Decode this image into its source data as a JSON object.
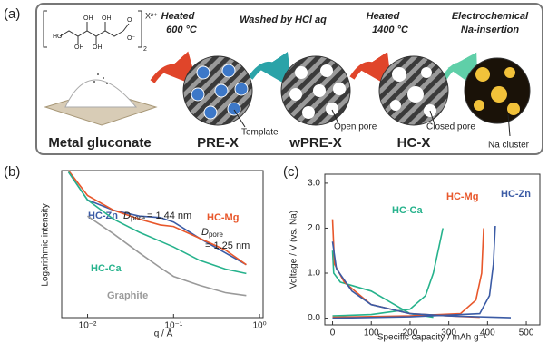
{
  "panel_labels": [
    "(a)",
    "(b)",
    "(c)"
  ],
  "schematic": {
    "structure_labels": [
      "HO",
      "OH",
      "OH",
      "OH",
      "OH",
      "O",
      "O⁻"
    ],
    "counter_ion": "X²⁺",
    "counter_count": "2",
    "steps": [
      {
        "lines": [
          "Heated",
          "600 °C"
        ]
      },
      {
        "lines": [
          "Washed by HCl aq"
        ]
      },
      {
        "lines": [
          "Heated",
          "1400 °C"
        ]
      },
      {
        "lines": [
          "Electrochemical",
          "Na-insertion"
        ]
      }
    ],
    "stages": [
      "Metal gluconate",
      "PRE-X",
      "wPRE-X",
      "HC-X"
    ],
    "callouts": [
      "Template",
      "Open pore",
      "Closed pore",
      "Na cluster"
    ]
  },
  "chart_data": [
    {
      "type": "line",
      "xscale": "log",
      "xlabel": "q / Å",
      "ylabel": "Logarithmic intensity",
      "xlim": [
        0.005,
        1.1
      ],
      "ylim": [
        0,
        10
      ],
      "xticks": [
        {
          "value": 0.01,
          "label": "10⁻²"
        },
        {
          "value": 0.1,
          "label": "10⁻¹"
        },
        {
          "value": 1,
          "label": "10⁰"
        }
      ],
      "x": [
        0.006,
        0.01,
        0.02,
        0.04,
        0.07,
        0.1,
        0.2,
        0.4,
        0.7
      ],
      "series": [
        {
          "name": "HC-Zn",
          "color": "#3b5ba5",
          "values": [
            9.9,
            8.0,
            7.3,
            6.9,
            6.8,
            6.5,
            5.4,
            4.4,
            3.6
          ]
        },
        {
          "name": "HC-Mg",
          "color": "#e8572b",
          "values": [
            10.0,
            8.3,
            7.3,
            6.7,
            6.3,
            6.2,
            5.4,
            4.6,
            3.6
          ]
        },
        {
          "name": "HC-Ca",
          "color": "#26b28c",
          "values": [
            9.9,
            8.0,
            6.7,
            5.8,
            5.2,
            4.8,
            3.9,
            3.3,
            3.0
          ]
        },
        {
          "name": "Graphite",
          "color": "#9a9a9a",
          "values": [
            null,
            6.9,
            5.7,
            4.4,
            3.4,
            2.8,
            2.2,
            1.7,
            1.5
          ]
        }
      ],
      "annotations": [
        [
          "D",
          "pore",
          "= 1.44 nm"
        ],
        [
          "D",
          "pore"
        ],
        [
          "= 1.25 nm"
        ]
      ]
    },
    {
      "type": "line",
      "xlabel": "Specific capacity / mAh g⁻¹",
      "ylabel": "Voltage / V (vs. Na)",
      "xlim": [
        -20,
        535
      ],
      "ylim": [
        -0.15,
        3.2
      ],
      "xticks": [
        0,
        100,
        200,
        300,
        400,
        500
      ],
      "yticks": [
        {
          "value": 0,
          "label": "0.0"
        },
        {
          "value": 1,
          "label": "1.0"
        },
        {
          "value": 2,
          "label": "2.0"
        },
        {
          "value": 3,
          "label": "3.0"
        }
      ],
      "series": [
        {
          "name": "HC-Ca",
          "color": "#26b28c",
          "x": [
            0,
            3,
            20,
            100,
            160,
            200,
            260,
            null,
            0,
            100,
            200,
            240,
            260,
            275,
            285
          ],
          "values": [
            1.5,
            1.0,
            0.8,
            0.6,
            0.3,
            0.1,
            0.02,
            null,
            0.05,
            0.08,
            0.2,
            0.5,
            1.0,
            1.6,
            2.0
          ]
        },
        {
          "name": "HC-Mg",
          "color": "#e8572b",
          "x": [
            0,
            5,
            30,
            100,
            200,
            300,
            380,
            null,
            0,
            200,
            330,
            370,
            385,
            390
          ],
          "values": [
            2.2,
            1.2,
            0.8,
            0.3,
            0.1,
            0.05,
            0.02,
            null,
            0.02,
            0.05,
            0.1,
            0.4,
            1.0,
            2.0
          ]
        },
        {
          "name": "HC-Zn",
          "color": "#3b5ba5",
          "x": [
            0,
            10,
            50,
            100,
            200,
            300,
            420,
            460,
            null,
            0,
            200,
            380,
            405,
            415,
            420
          ],
          "values": [
            1.7,
            1.1,
            0.6,
            0.3,
            0.1,
            0.05,
            0.02,
            0.01,
            null,
            0.0,
            0.03,
            0.1,
            0.5,
            1.2,
            2.05
          ]
        }
      ]
    }
  ]
}
